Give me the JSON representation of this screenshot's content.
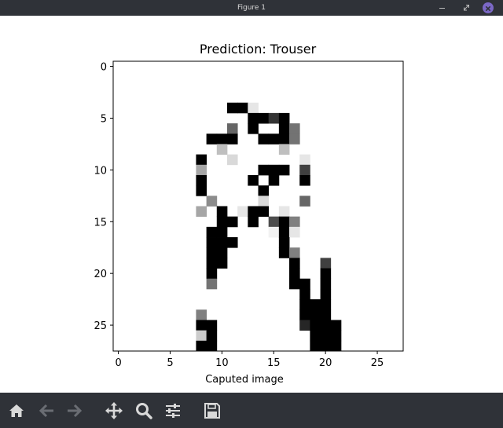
{
  "window": {
    "title": "Figure 1"
  },
  "colors": {
    "chrome": "#2f3238",
    "close_accent": "#7b68c6",
    "toolbar_icon": "#d9d9d9",
    "toolbar_icon_disabled": "#6a6d73"
  },
  "toolbar": {
    "icons": [
      "home-icon",
      "back-arrow-icon",
      "forward-arrow-icon",
      "pan-icon",
      "zoom-icon",
      "configure-subplots-icon",
      "save-icon"
    ]
  },
  "chart_data": {
    "type": "heatmap",
    "title": "Prediction: Trouser",
    "xlabel": "Caputed image",
    "ylabel": "",
    "xlim": [
      -0.5,
      27.5
    ],
    "ylim": [
      27.5,
      -0.5
    ],
    "colormap": "gray_r",
    "xticks": [
      0,
      5,
      10,
      15,
      20,
      25
    ],
    "yticks": [
      0,
      5,
      10,
      15,
      20,
      25
    ],
    "grid": false,
    "pixels": [
      [
        0,
        0,
        0,
        0,
        0,
        0,
        0,
        0,
        0,
        0,
        0,
        0,
        0,
        0,
        0,
        0,
        0,
        0,
        0,
        0,
        0,
        0,
        0,
        0,
        0,
        0,
        0,
        0
      ],
      [
        0,
        0,
        0,
        0,
        0,
        0,
        0,
        0,
        0,
        0,
        0,
        0,
        0,
        0,
        0,
        0,
        0,
        0,
        0,
        0,
        0,
        0,
        0,
        0,
        0,
        0,
        0,
        0
      ],
      [
        0,
        0,
        0,
        0,
        0,
        0,
        0,
        0,
        0,
        0,
        0,
        0,
        0,
        0,
        0,
        0,
        0,
        0,
        0,
        0,
        0,
        0,
        0,
        0,
        0,
        0,
        0,
        0
      ],
      [
        0,
        0,
        0,
        0,
        0,
        0,
        0,
        0,
        0,
        0,
        0,
        0,
        0,
        0,
        0,
        0,
        0,
        0,
        0,
        0,
        0,
        0,
        0,
        0,
        0,
        0,
        0,
        0
      ],
      [
        0,
        0,
        0,
        0,
        0,
        0,
        0,
        0,
        0,
        0,
        0,
        1,
        1,
        0.1,
        0,
        0,
        0,
        0,
        0,
        0,
        0,
        0,
        0,
        0,
        0,
        0,
        0,
        0
      ],
      [
        0,
        0,
        0,
        0,
        0,
        0,
        0,
        0,
        0,
        0,
        0,
        0,
        0,
        1,
        1,
        0.8,
        1,
        0,
        0,
        0,
        0,
        0,
        0,
        0,
        0,
        0,
        0,
        0
      ],
      [
        0,
        0,
        0,
        0,
        0,
        0,
        0,
        0,
        0,
        0,
        0,
        0.6,
        0,
        1,
        0,
        0,
        1,
        0.55,
        0,
        0,
        0,
        0,
        0,
        0,
        0,
        0,
        0,
        0
      ],
      [
        0,
        0,
        0,
        0,
        0,
        0,
        0,
        0,
        0,
        1,
        1,
        1,
        0,
        0,
        1,
        1,
        1,
        0.55,
        0,
        0,
        0,
        0,
        0,
        0,
        0,
        0,
        0,
        0
      ],
      [
        0,
        0,
        0,
        0,
        0,
        0,
        0,
        0,
        0,
        0,
        0.25,
        0,
        0,
        0,
        0,
        0,
        0.25,
        0,
        0,
        0,
        0,
        0,
        0,
        0,
        0,
        0,
        0,
        0
      ],
      [
        0,
        0,
        0,
        0,
        0,
        0,
        0,
        0,
        1,
        0,
        0,
        0.15,
        0,
        0,
        0,
        0,
        0,
        0,
        0.1,
        0,
        0,
        0,
        0,
        0,
        0,
        0,
        0,
        0
      ],
      [
        0,
        0,
        0,
        0,
        0,
        0,
        0,
        0,
        0.35,
        0,
        0,
        0,
        0,
        0,
        1,
        1,
        1,
        0,
        0.75,
        0,
        0,
        0,
        0,
        0,
        0,
        0,
        0,
        0
      ],
      [
        0,
        0,
        0,
        0,
        0,
        0,
        0,
        0,
        1,
        0,
        0,
        0,
        0,
        1,
        0,
        1,
        0,
        0,
        1,
        0,
        0,
        0,
        0,
        0,
        0,
        0,
        0,
        0
      ],
      [
        0,
        0,
        0,
        0,
        0,
        0,
        0,
        0,
        1,
        0,
        0,
        0,
        0,
        0,
        1,
        0,
        0,
        0,
        0,
        0,
        0,
        0,
        0,
        0,
        0,
        0,
        0,
        0
      ],
      [
        0,
        0,
        0,
        0,
        0,
        0,
        0,
        0,
        0,
        0.45,
        0,
        0,
        0,
        0,
        0.15,
        0,
        0,
        0,
        0.6,
        0,
        0,
        0,
        0,
        0,
        0,
        0,
        0,
        0
      ],
      [
        0,
        0,
        0,
        0,
        0,
        0,
        0,
        0,
        0.35,
        0,
        1,
        0,
        0.1,
        1,
        1,
        0,
        0.1,
        0,
        0,
        0,
        0,
        0,
        0,
        0,
        0,
        0,
        0,
        0
      ],
      [
        0,
        0,
        0,
        0,
        0,
        0,
        0,
        0,
        0,
        0,
        1,
        1,
        0,
        1,
        0,
        0.7,
        1,
        0.5,
        0,
        0,
        0,
        0,
        0,
        0,
        0,
        0,
        0,
        0
      ],
      [
        0,
        0,
        0,
        0,
        0,
        0,
        0,
        0,
        0,
        1,
        1,
        0,
        0,
        0,
        0,
        0.05,
        1,
        0.1,
        0,
        0,
        0,
        0,
        0,
        0,
        0,
        0,
        0,
        0
      ],
      [
        0,
        0,
        0,
        0,
        0,
        0,
        0,
        0,
        0,
        1,
        1,
        1,
        0,
        0,
        0,
        0,
        1,
        0,
        0,
        0,
        0,
        0,
        0,
        0,
        0,
        0,
        0,
        0
      ],
      [
        0,
        0,
        0,
        0,
        0,
        0,
        0,
        0,
        0,
        1,
        1,
        0,
        0,
        0,
        0,
        0,
        1,
        0.5,
        0,
        0,
        0,
        0,
        0,
        0,
        0,
        0,
        0,
        0
      ],
      [
        0,
        0,
        0,
        0,
        0,
        0,
        0,
        0,
        0,
        1,
        1,
        0,
        0,
        0,
        0,
        0,
        0,
        1,
        0,
        0,
        0.75,
        0,
        0,
        0,
        0,
        0,
        0,
        0
      ],
      [
        0,
        0,
        0,
        0,
        0,
        0,
        0,
        0,
        0,
        1,
        0,
        0,
        0,
        0,
        0,
        0,
        0,
        1,
        0,
        0,
        1,
        0,
        0,
        0,
        0,
        0,
        0,
        0
      ],
      [
        0,
        0,
        0,
        0,
        0,
        0,
        0,
        0,
        0,
        0.55,
        0,
        0,
        0,
        0,
        0,
        0,
        0,
        1,
        1,
        0,
        1,
        0,
        0,
        0,
        0,
        0,
        0,
        0
      ],
      [
        0,
        0,
        0,
        0,
        0,
        0,
        0,
        0,
        0,
        0,
        0,
        0,
        0,
        0,
        0,
        0,
        0,
        0,
        1,
        0,
        1,
        0,
        0,
        0,
        0,
        0,
        0,
        0
      ],
      [
        0,
        0,
        0,
        0,
        0,
        0,
        0,
        0,
        0,
        0,
        0,
        0,
        0,
        0,
        0,
        0,
        0,
        0,
        1,
        1,
        1,
        0,
        0,
        0,
        0,
        0,
        0,
        0
      ],
      [
        0,
        0,
        0,
        0,
        0,
        0,
        0,
        0,
        0.5,
        0,
        0,
        0,
        0,
        0,
        0,
        0,
        0,
        0,
        1,
        1,
        1,
        0,
        0,
        0,
        0,
        0,
        0,
        0
      ],
      [
        0,
        0,
        0,
        0,
        0,
        0,
        0,
        0,
        1,
        1,
        0,
        0,
        0,
        0,
        0,
        0,
        0,
        0,
        0.85,
        1,
        1,
        1,
        0,
        0,
        0,
        0,
        0,
        0
      ],
      [
        0,
        0,
        0,
        0,
        0,
        0,
        0,
        0,
        0.2,
        1,
        0,
        0,
        0,
        0,
        0,
        0,
        0,
        0,
        0,
        1,
        1,
        1,
        0,
        0,
        0,
        0,
        0,
        0
      ],
      [
        0,
        0,
        0,
        0,
        0,
        0,
        0,
        0,
        1,
        1,
        0,
        0,
        0,
        0,
        0,
        0,
        0,
        0,
        0,
        1,
        1,
        1,
        0,
        0,
        0,
        0,
        0,
        0
      ]
    ]
  }
}
